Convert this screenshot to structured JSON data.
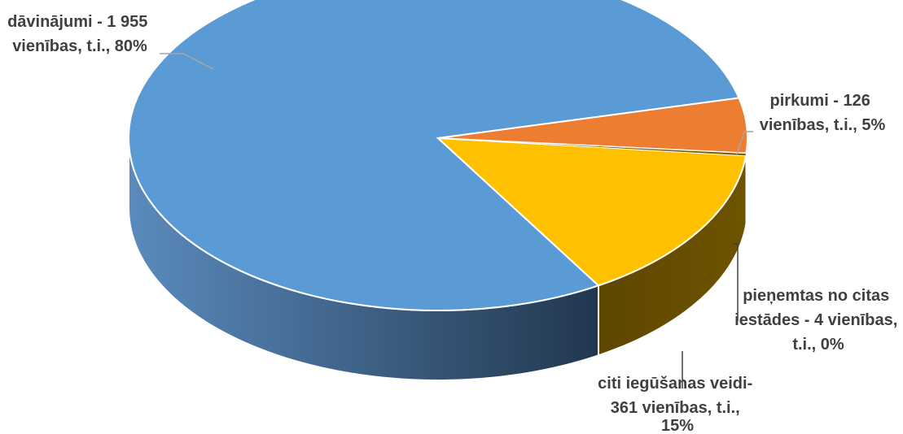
{
  "chart_data": {
    "type": "pie",
    "title": "",
    "style": "3d",
    "slices": [
      {
        "name": "dāvinājumi",
        "value": 1955,
        "percent": 80,
        "color": "#5b9bd5",
        "label_lines": [
          "dāvinājumi - 1 955",
          "vienības, t.i., 80%"
        ]
      },
      {
        "name": "pirkumi",
        "value": 126,
        "percent": 5,
        "color": "#ed7d31",
        "label_lines": [
          "pirkumi - 126",
          "vienības, t.i., 5%"
        ]
      },
      {
        "name": "citi iegūšanas veidi",
        "value": 361,
        "percent": 15,
        "color": "#ffc000",
        "label_lines": [
          "citi iegūšanas veidi-",
          "361 vienības, t.i.,",
          "15%"
        ]
      },
      {
        "name": "pieņemtas no citas iestādes",
        "value": 4,
        "percent": 0,
        "color": "#7f6000",
        "label_lines": [
          "pieņemtas no citas",
          "iestādes - 4 vienības,",
          "t.i., 0%"
        ]
      }
    ]
  }
}
